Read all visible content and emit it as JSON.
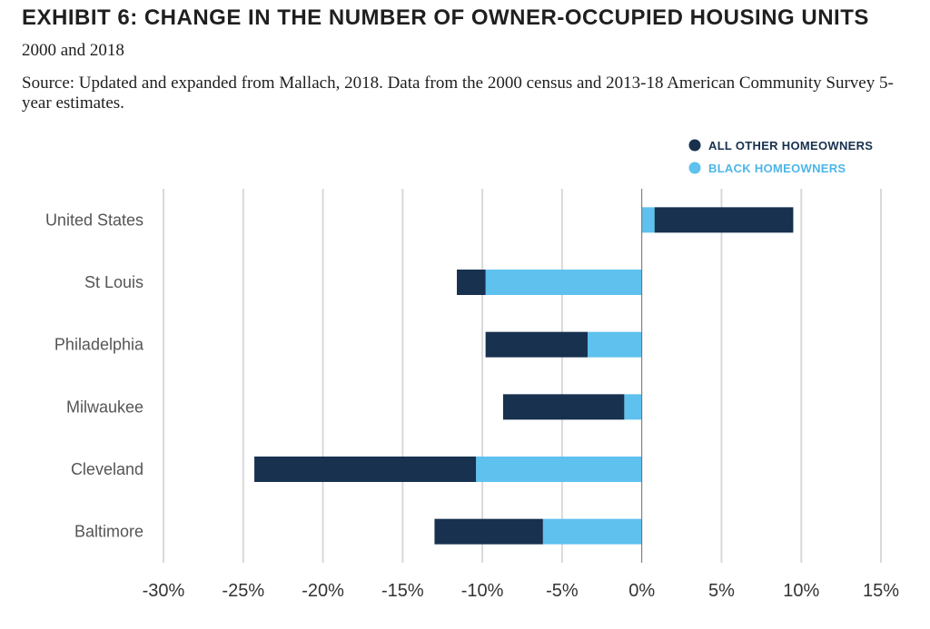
{
  "title": "EXHIBIT 6: CHANGE IN THE NUMBER OF OWNER-OCCUPIED HOUSING UNITS",
  "subtitle": "2000 and 2018",
  "source": "Source: Updated and expanded from Mallach, 2018. Data from the 2000 census and 2013-18 American Community Survey 5-year estimates.",
  "chart_data": {
    "type": "bar",
    "orientation": "horizontal",
    "stacked": true,
    "categories": [
      "United States",
      "St Louis",
      "Philadelphia",
      "Milwaukee",
      "Cleveland",
      "Baltimore"
    ],
    "series": [
      {
        "name": "BLACK HOMEOWNERS",
        "color": "#5ec1ee",
        "values": [
          0.8,
          -9.8,
          -3.4,
          -1.1,
          -10.4,
          -6.2
        ]
      },
      {
        "name": "ALL OTHER HOMEOWNERS",
        "color": "#17314f",
        "values": [
          8.7,
          -1.8,
          -6.4,
          -7.6,
          -13.9,
          -6.8
        ]
      }
    ],
    "xlim": [
      -30,
      15
    ],
    "xticks": [
      -30,
      -25,
      -20,
      -15,
      -10,
      -5,
      0,
      5,
      10,
      15
    ],
    "xtick_labels": [
      "-30%",
      "-25%",
      "-20%",
      "-15%",
      "-10%",
      "-5%",
      "0%",
      "5%",
      "10%",
      "15%"
    ],
    "legend_position": "top-right",
    "grid": true
  }
}
